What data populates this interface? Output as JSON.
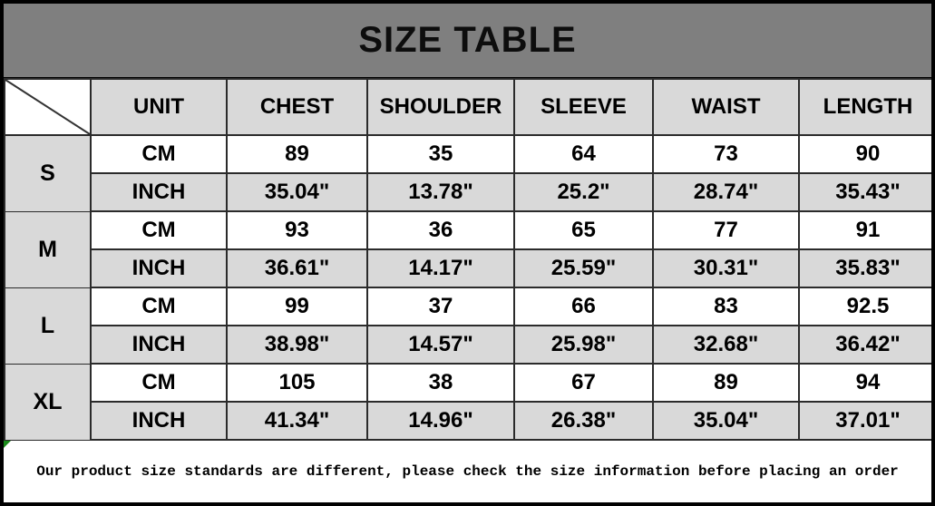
{
  "title": "SIZE TABLE",
  "table": {
    "columns": [
      "UNIT",
      "CHEST",
      "SHOULDER",
      "SLEEVE",
      "WAIST",
      "LENGTH"
    ],
    "sizes": [
      {
        "label": "S",
        "cm": {
          "unit": "CM",
          "values": [
            "89",
            "35",
            "64",
            "73",
            "90"
          ]
        },
        "inch": {
          "unit": "INCH",
          "values": [
            "35.04\"",
            "13.78\"",
            "25.2\"",
            "28.74\"",
            "35.43\""
          ]
        }
      },
      {
        "label": "M",
        "cm": {
          "unit": "CM",
          "values": [
            "93",
            "36",
            "65",
            "77",
            "91"
          ]
        },
        "inch": {
          "unit": "INCH",
          "values": [
            "36.61\"",
            "14.17\"",
            "25.59\"",
            "30.31\"",
            "35.83\""
          ]
        }
      },
      {
        "label": "L",
        "cm": {
          "unit": "CM",
          "values": [
            "99",
            "37",
            "66",
            "83",
            "92.5"
          ]
        },
        "inch": {
          "unit": "INCH",
          "values": [
            "38.98\"",
            "14.57\"",
            "25.98\"",
            "32.68\"",
            "36.42\""
          ]
        }
      },
      {
        "label": "XL",
        "cm": {
          "unit": "CM",
          "values": [
            "105",
            "38",
            "67",
            "89",
            "94"
          ]
        },
        "inch": {
          "unit": "INCH",
          "values": [
            "41.34\"",
            "14.96\"",
            "26.38\"",
            "35.04\"",
            "37.01\""
          ]
        }
      }
    ]
  },
  "note": "Our product size standards are different, please check the size information before placing an order",
  "colors": {
    "title_bar_bg": "#7f7f7f",
    "header_cell_bg": "#d9d9d9",
    "inch_row_bg": "#d9d9d9",
    "cm_row_bg": "#ffffff",
    "border": "#000000",
    "corner_marker_green": "#1a8a1a"
  }
}
